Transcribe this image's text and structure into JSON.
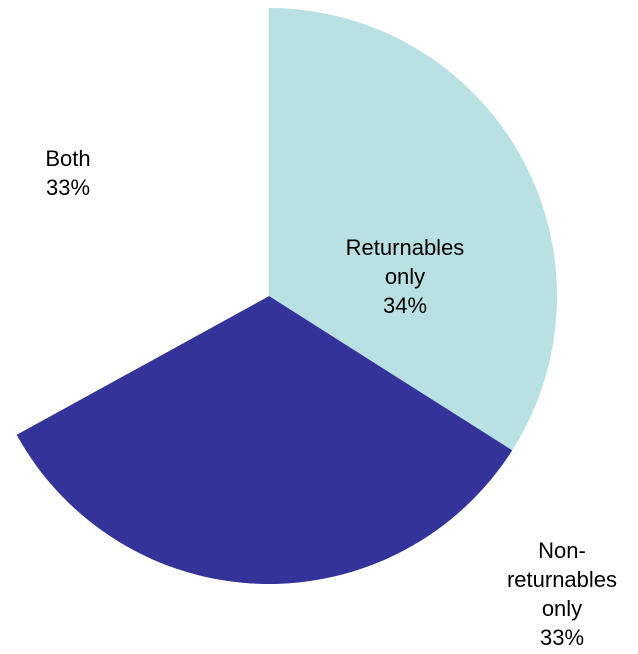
{
  "chart_data": {
    "type": "pie",
    "title": "",
    "slices": [
      {
        "name_lines": [
          "Returnables",
          "only"
        ],
        "value": 34,
        "value_label": "34%",
        "color": "#B9E0E2"
      },
      {
        "name_lines": [
          "Non-",
          "returnables",
          "only"
        ],
        "value": 33,
        "value_label": "33%",
        "color": "#333399"
      },
      {
        "name_lines": [
          "Both"
        ],
        "value": 33,
        "value_label": "33%",
        "color": "#FFFFFF"
      }
    ],
    "start_angle": "12 o'clock",
    "direction": "clockwise",
    "legend": "none",
    "label_position": {
      "Returnables only": "inside",
      "Non-returnables only": "outside bottom-right",
      "Both": "outside top-left"
    }
  }
}
